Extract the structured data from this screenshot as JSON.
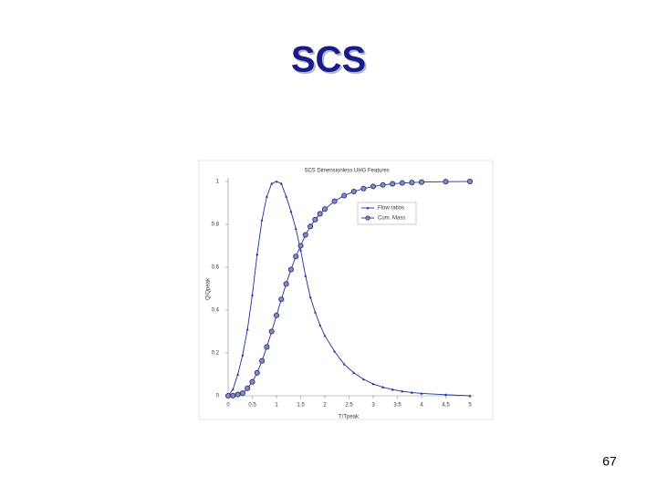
{
  "slide": {
    "title": "SCS",
    "page_number": "67"
  },
  "chart_data": {
    "type": "line",
    "title": "SCS Dimensionless UHG Features",
    "x_label": "T/Tpeak",
    "y_label": "Q/Qpeak",
    "x": [
      0,
      0.1,
      0.2,
      0.3,
      0.4,
      0.5,
      0.6,
      0.7,
      0.8,
      0.9,
      1.0,
      1.1,
      1.2,
      1.3,
      1.4,
      1.5,
      1.6,
      1.7,
      1.8,
      1.9,
      2.0,
      2.2,
      2.4,
      2.6,
      2.8,
      3.0,
      3.2,
      3.4,
      3.6,
      3.8,
      4.0,
      4.5,
      5.0
    ],
    "series": [
      {
        "name": "Flow ratios",
        "color": "#1f2d9a",
        "marker": "triangle",
        "values": [
          0,
          0.03,
          0.1,
          0.19,
          0.31,
          0.47,
          0.66,
          0.82,
          0.93,
          0.99,
          1.0,
          0.99,
          0.93,
          0.86,
          0.78,
          0.68,
          0.56,
          0.46,
          0.39,
          0.33,
          0.28,
          0.207,
          0.147,
          0.107,
          0.077,
          0.055,
          0.04,
          0.029,
          0.021,
          0.015,
          0.011,
          0.005,
          0
        ]
      },
      {
        "name": "Cum. Mass",
        "color": "#1f2d9a",
        "marker": "circle",
        "values": [
          0,
          0.001,
          0.006,
          0.012,
          0.035,
          0.065,
          0.107,
          0.163,
          0.228,
          0.3,
          0.375,
          0.45,
          0.522,
          0.589,
          0.65,
          0.7,
          0.751,
          0.79,
          0.822,
          0.849,
          0.871,
          0.908,
          0.934,
          0.953,
          0.967,
          0.977,
          0.984,
          0.989,
          0.993,
          0.995,
          0.997,
          0.999,
          1.0
        ]
      }
    ],
    "xlim": [
      0,
      5
    ],
    "ylim": [
      0,
      1
    ],
    "xticks": [
      0,
      0.5,
      1,
      1.5,
      2,
      2.5,
      3,
      3.5,
      4,
      4.5,
      5
    ],
    "yticks": [
      0,
      0.2,
      0.4,
      0.6,
      0.8,
      1
    ],
    "grid": false,
    "legend": "upper right"
  }
}
